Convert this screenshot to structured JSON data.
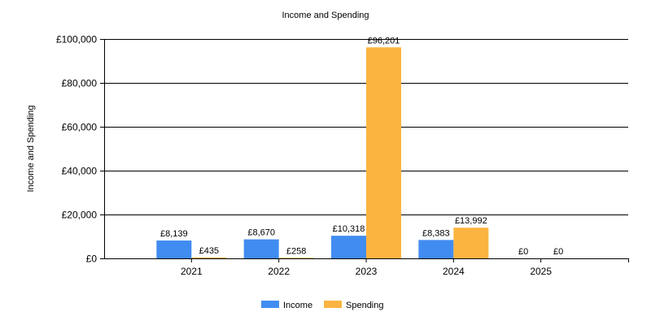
{
  "chart_data": {
    "type": "bar",
    "title": "Income and Spending",
    "xlabel": "",
    "ylabel": "Income and Spending",
    "categories": [
      "2021",
      "2022",
      "2023",
      "2024",
      "2025"
    ],
    "series": [
      {
        "name": "Income",
        "color": "#418CF0",
        "values": [
          8139,
          8670,
          10318,
          8383,
          0
        ],
        "labels": [
          "£8,139",
          "£8,670",
          "£10,318",
          "£8,383",
          "£0"
        ]
      },
      {
        "name": "Spending",
        "color": "#FCB441",
        "values": [
          435,
          258,
          96201,
          13992,
          0
        ],
        "labels": [
          "£435",
          "£258",
          "£96,201",
          "£13,992",
          "£0"
        ]
      }
    ],
    "ylim": [
      0,
      100000
    ],
    "yticks": [
      0,
      20000,
      40000,
      60000,
      80000,
      100000
    ],
    "ytick_labels": [
      "£0",
      "£20,000",
      "£40,000",
      "£60,000",
      "£80,000",
      "£100,000"
    ],
    "grid": true,
    "legend_position": "bottom-center"
  }
}
